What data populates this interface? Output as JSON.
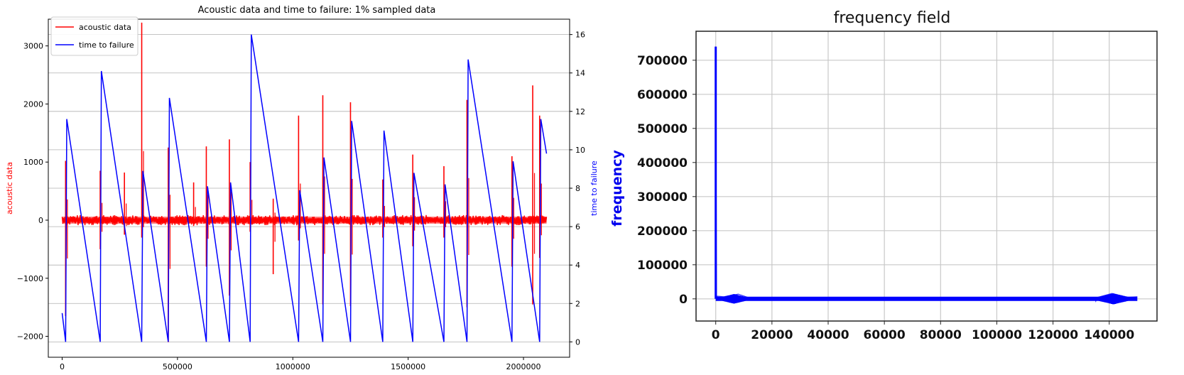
{
  "chart_data": [
    {
      "type": "line",
      "title": "Acoustic data and time to failure: 1% sampled data",
      "xlabel": "",
      "xlim": [
        -60000,
        2200000
      ],
      "x_ticks": [
        {
          "value": 0,
          "label": "0"
        },
        {
          "value": 500000,
          "label": "500000"
        },
        {
          "value": 1000000,
          "label": "1000000"
        },
        {
          "value": 1500000,
          "label": "1500000"
        },
        {
          "value": 2000000,
          "label": "2000000"
        }
      ],
      "y_left": {
        "label": "acoustic data",
        "color": "#ff0000",
        "lim": [
          -2360,
          3460
        ],
        "ticks": [
          {
            "value": -2000,
            "label": "−2000"
          },
          {
            "value": -1000,
            "label": "−1000"
          },
          {
            "value": 0,
            "label": "0"
          },
          {
            "value": 1000,
            "label": "1000"
          },
          {
            "value": 2000,
            "label": "2000"
          },
          {
            "value": 3000,
            "label": "3000"
          }
        ]
      },
      "y_right": {
        "label": "time to failure",
        "color": "#0000ff",
        "lim": [
          -0.8,
          16.8
        ],
        "ticks": [
          {
            "value": 0,
            "label": "0"
          },
          {
            "value": 2,
            "label": "2"
          },
          {
            "value": 4,
            "label": "4"
          },
          {
            "value": 6,
            "label": "6"
          },
          {
            "value": 8,
            "label": "8"
          },
          {
            "value": 10,
            "label": "10"
          },
          {
            "value": 12,
            "label": "12"
          },
          {
            "value": 14,
            "label": "14"
          },
          {
            "value": 16,
            "label": "16"
          }
        ]
      },
      "grid": "horizontal (right axis)",
      "legend_position": "top-left",
      "series": [
        {
          "name": "acoustic data",
          "axis": "left",
          "color": "#ff0000",
          "noise_band": [
            -80,
            80
          ],
          "spikes": [
            {
              "x": 15000,
              "high": 1020,
              "low": -1650
            },
            {
              "x": 165000,
              "high": 850,
              "low": -500
            },
            {
              "x": 270000,
              "high": 820,
              "low": -250
            },
            {
              "x": 345000,
              "high": 3400,
              "low": -300
            },
            {
              "x": 460000,
              "high": 1250,
              "low": -2100
            },
            {
              "x": 570000,
              "high": 650,
              "low": -100
            },
            {
              "x": 625000,
              "high": 1270,
              "low": -800
            },
            {
              "x": 725000,
              "high": 1390,
              "low": -1300
            },
            {
              "x": 815000,
              "high": 1000,
              "low": -200
            },
            {
              "x": 915000,
              "high": 370,
              "low": -930
            },
            {
              "x": 1025000,
              "high": 1800,
              "low": -350
            },
            {
              "x": 1130000,
              "high": 2150,
              "low": -1450
            },
            {
              "x": 1250000,
              "high": 2030,
              "low": -1480
            },
            {
              "x": 1390000,
              "high": 700,
              "low": -300
            },
            {
              "x": 1520000,
              "high": 1130,
              "low": -450
            },
            {
              "x": 1655000,
              "high": 930,
              "low": -300
            },
            {
              "x": 1755000,
              "high": 2070,
              "low": -1500
            },
            {
              "x": 1950000,
              "high": 1100,
              "low": -800
            },
            {
              "x": 2040000,
              "high": 2320,
              "low": -1450
            },
            {
              "x": 2070000,
              "high": 1800,
              "low": -650
            }
          ]
        },
        {
          "name": "time to failure",
          "axis": "right",
          "color": "#0000ff",
          "x": [
            0,
            15000,
            20000,
            165000,
            170000,
            345000,
            350000,
            460000,
            465000,
            625000,
            630000,
            725000,
            730000,
            815000,
            820000,
            1025000,
            1030000,
            1130000,
            1135000,
            1250000,
            1255000,
            1390000,
            1395000,
            1520000,
            1525000,
            1655000,
            1660000,
            1755000,
            1760000,
            1950000,
            1955000,
            2070000,
            2075000,
            2100000
          ],
          "y": [
            1.5,
            0.0,
            11.6,
            0.0,
            14.1,
            0.0,
            8.9,
            0.0,
            12.7,
            0.0,
            8.1,
            0.0,
            8.3,
            0.0,
            16.0,
            0.0,
            7.9,
            0.0,
            9.6,
            0.0,
            11.5,
            0.0,
            11.0,
            0.0,
            8.8,
            0.0,
            8.2,
            0.0,
            14.7,
            0.0,
            9.4,
            0.0,
            11.6,
            9.8
          ]
        }
      ]
    },
    {
      "type": "line",
      "title": "frequency field",
      "xlabel": "",
      "ylabel": "frequency",
      "xlim": [
        -7000,
        157000
      ],
      "ylim": [
        -65000,
        785000
      ],
      "x_ticks": [
        {
          "value": 0,
          "label": "0"
        },
        {
          "value": 20000,
          "label": "20000"
        },
        {
          "value": 40000,
          "label": "40000"
        },
        {
          "value": 60000,
          "label": "60000"
        },
        {
          "value": 80000,
          "label": "80000"
        },
        {
          "value": 100000,
          "label": "100000"
        },
        {
          "value": 120000,
          "label": "120000"
        },
        {
          "value": 140000,
          "label": "140000"
        }
      ],
      "y_ticks": [
        {
          "value": 0,
          "label": "0"
        },
        {
          "value": 100000,
          "label": "100000"
        },
        {
          "value": 200000,
          "label": "200000"
        },
        {
          "value": 300000,
          "label": "300000"
        },
        {
          "value": 400000,
          "label": "400000"
        },
        {
          "value": 500000,
          "label": "500000"
        },
        {
          "value": 600000,
          "label": "600000"
        },
        {
          "value": 700000,
          "label": "700000"
        }
      ],
      "grid": "on",
      "series": [
        {
          "name": "",
          "color": "#0000ff",
          "x": [
            0,
            300,
            600,
            3000,
            8000,
            12000,
            20000,
            60000,
            100000,
            135000,
            141000,
            145000,
            150000
          ],
          "y": [
            740000,
            2000,
            8000,
            6000,
            14000,
            3000,
            2500,
            2000,
            2000,
            2500,
            16000,
            4000,
            6000
          ],
          "x_range": [
            0,
            150000
          ]
        }
      ]
    }
  ]
}
